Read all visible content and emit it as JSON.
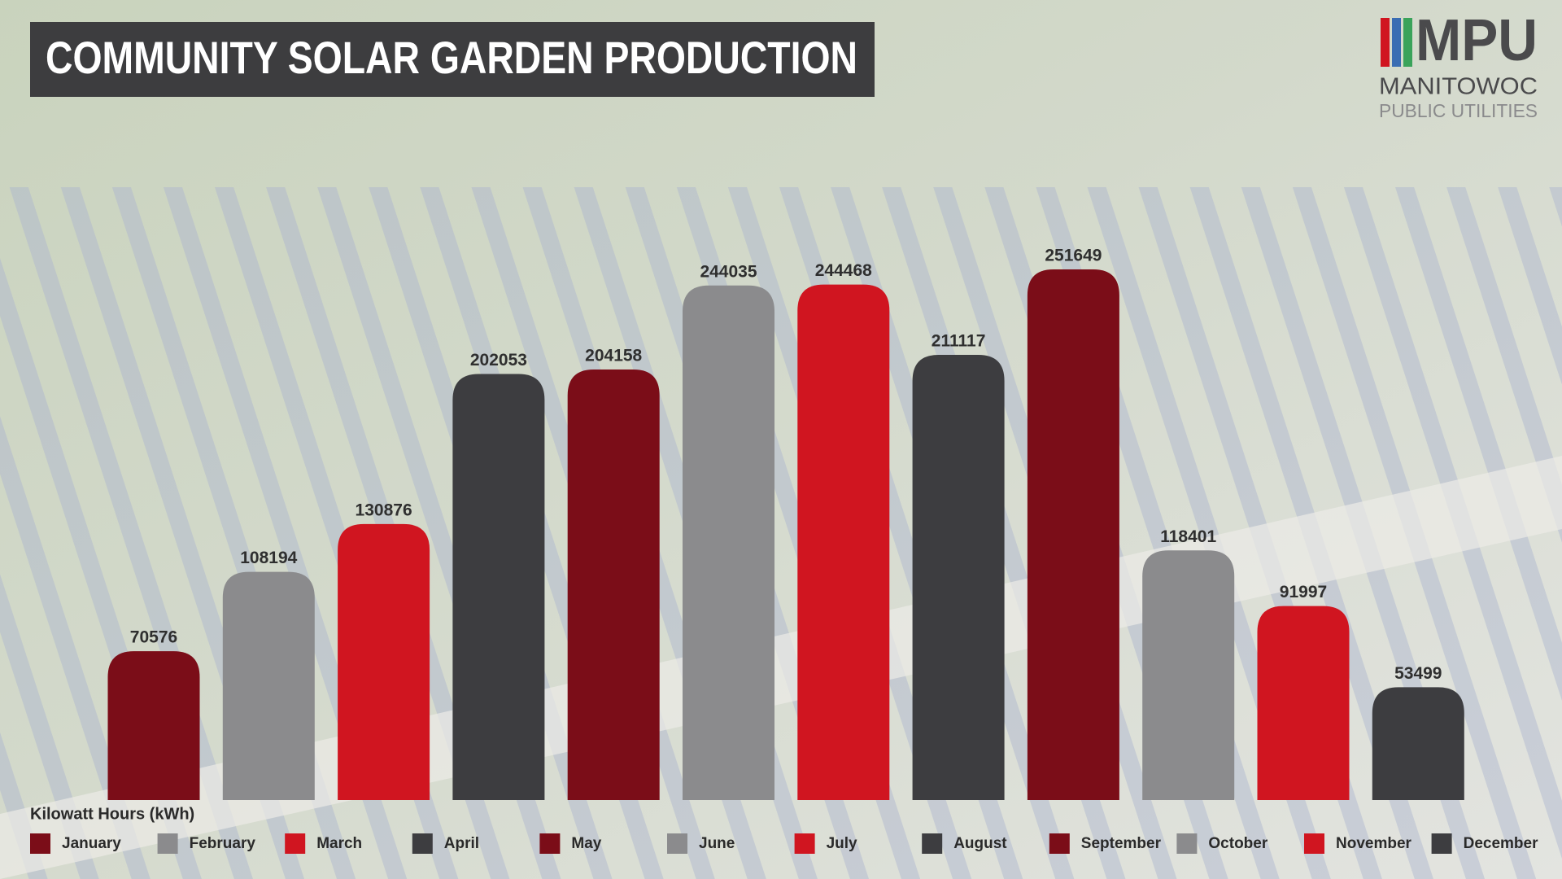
{
  "chart_data": {
    "type": "bar",
    "title": "COMMUNITY SOLAR GARDEN PRODUCTION",
    "y_label": "Kilowatt Hours (kWh)",
    "categories": [
      "January",
      "February",
      "March",
      "April",
      "May",
      "June",
      "July",
      "August",
      "September",
      "October",
      "November",
      "December"
    ],
    "values": [
      70576,
      108194,
      130876,
      202053,
      204158,
      244035,
      244468,
      211117,
      251649,
      118401,
      91997,
      53499
    ],
    "colors": [
      "#7b0d18",
      "#8b8b8d",
      "#d01520",
      "#3d3d40",
      "#7b0d18",
      "#8b8b8d",
      "#d01520",
      "#3d3d40",
      "#7b0d18",
      "#8b8b8d",
      "#d01520",
      "#3d3d40"
    ],
    "legend": "bottom"
  },
  "logo": {
    "abbr": "MPU",
    "line1": "MANITOWOC",
    "line2": "PUBLIC UTILITIES"
  }
}
